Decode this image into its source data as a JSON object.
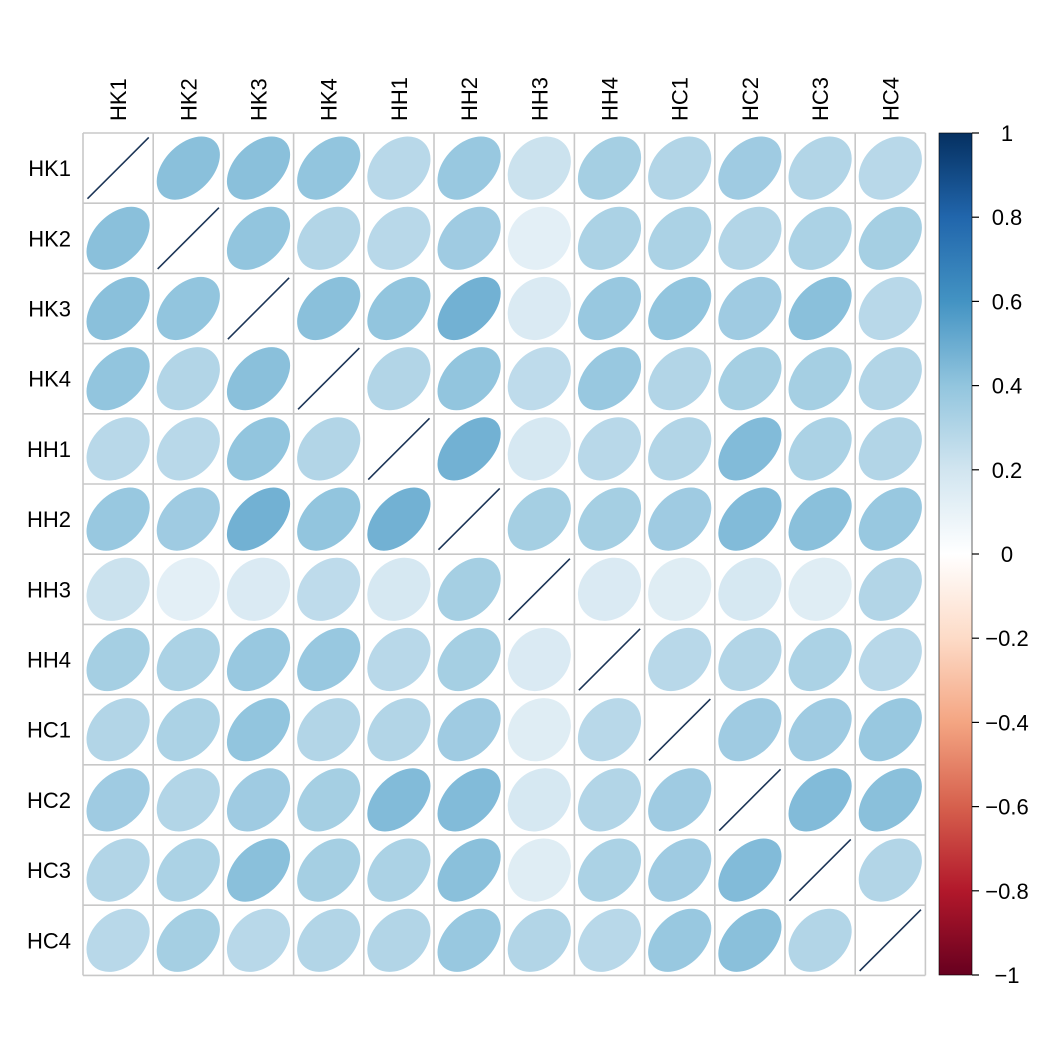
{
  "chart_data": {
    "type": "heatmap",
    "variables": [
      "HK1",
      "HK2",
      "HK3",
      "HK4",
      "HH1",
      "HH2",
      "HH3",
      "HH4",
      "HC1",
      "HC2",
      "HC3",
      "HC4"
    ],
    "matrix": [
      [
        1.0,
        0.42,
        0.42,
        0.4,
        0.28,
        0.38,
        0.22,
        0.34,
        0.3,
        0.36,
        0.3,
        0.28
      ],
      [
        0.42,
        1.0,
        0.4,
        0.3,
        0.28,
        0.36,
        0.12,
        0.32,
        0.32,
        0.3,
        0.32,
        0.34
      ],
      [
        0.42,
        0.4,
        1.0,
        0.42,
        0.4,
        0.48,
        0.16,
        0.38,
        0.4,
        0.36,
        0.42,
        0.28
      ],
      [
        0.4,
        0.3,
        0.42,
        1.0,
        0.3,
        0.4,
        0.26,
        0.38,
        0.3,
        0.34,
        0.34,
        0.3
      ],
      [
        0.28,
        0.28,
        0.4,
        0.3,
        1.0,
        0.48,
        0.18,
        0.28,
        0.3,
        0.44,
        0.32,
        0.3
      ],
      [
        0.38,
        0.36,
        0.48,
        0.4,
        0.48,
        1.0,
        0.34,
        0.34,
        0.36,
        0.44,
        0.42,
        0.38
      ],
      [
        0.22,
        0.12,
        0.16,
        0.26,
        0.18,
        0.34,
        1.0,
        0.16,
        0.14,
        0.18,
        0.14,
        0.3
      ],
      [
        0.34,
        0.32,
        0.38,
        0.38,
        0.28,
        0.34,
        0.16,
        1.0,
        0.28,
        0.3,
        0.32,
        0.28
      ],
      [
        0.3,
        0.32,
        0.4,
        0.3,
        0.3,
        0.36,
        0.14,
        0.28,
        1.0,
        0.36,
        0.36,
        0.38
      ],
      [
        0.36,
        0.3,
        0.36,
        0.34,
        0.44,
        0.44,
        0.18,
        0.3,
        0.36,
        1.0,
        0.44,
        0.42
      ],
      [
        0.3,
        0.32,
        0.42,
        0.34,
        0.32,
        0.42,
        0.14,
        0.32,
        0.36,
        0.44,
        1.0,
        0.3
      ],
      [
        0.28,
        0.34,
        0.28,
        0.3,
        0.3,
        0.38,
        0.3,
        0.28,
        0.38,
        0.42,
        0.3,
        1.0
      ]
    ],
    "method": "ellipse",
    "color_range": [
      -1,
      1
    ],
    "colorbar": {
      "ticks": [
        1,
        0.8,
        0.6,
        0.4,
        0.2,
        0,
        -0.2,
        -0.4,
        -0.6,
        -0.8,
        -1
      ],
      "tick_labels": [
        "1",
        "0.8",
        "0.6",
        "0.4",
        "0.2",
        "0",
        "−0.2",
        "−0.4",
        "−0.6",
        "−0.8",
        "−1"
      ],
      "placement": "right"
    },
    "palette": [
      "#67001F",
      "#B2182B",
      "#D6604D",
      "#F4A582",
      "#FDDBC7",
      "#FFFFFF",
      "#D1E5F0",
      "#92C5DE",
      "#4393C3",
      "#2166AC",
      "#053061"
    ],
    "grid_color": "#C8C8C8",
    "diagonal_line_color": "#1C3557",
    "title": "",
    "xlabel": "",
    "ylabel": ""
  }
}
